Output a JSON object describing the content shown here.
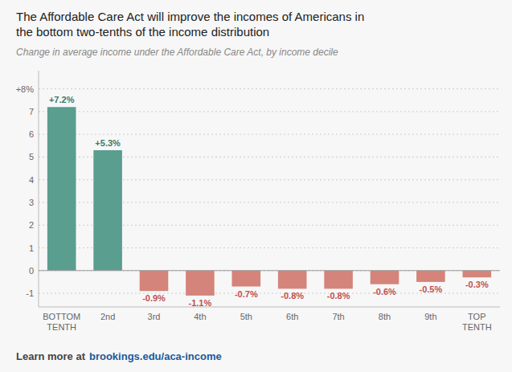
{
  "chart_data": {
    "type": "bar",
    "title": "The Affordable Care Act will improve the incomes of Americans in\nthe bottom two-tenths of the income distribution",
    "subtitle": "Change in average income under the Affordable Care Act, by income decile",
    "categories": [
      "BOTTOM\nTENTH",
      "2nd",
      "3rd",
      "4th",
      "5th",
      "6th",
      "7th",
      "8th",
      "9th",
      "TOP\nTENTH"
    ],
    "values": [
      7.2,
      5.3,
      -0.9,
      -1.1,
      -0.7,
      -0.8,
      -0.8,
      -0.6,
      -0.5,
      -0.3
    ],
    "value_labels": [
      "+7.2%",
      "+5.3%",
      "-0.9%",
      "-1.1%",
      "-0.7%",
      "-0.8%",
      "-0.8%",
      "-0.6%",
      "-0.5%",
      "-0.3%"
    ],
    "colors": [
      "#5a9e8f",
      "#5a9e8f",
      "#d4847a",
      "#d4847a",
      "#d4847a",
      "#d4847a",
      "#d4847a",
      "#d4847a",
      "#d4847a",
      "#d4847a"
    ],
    "data_labels": true,
    "ylim": [
      -1.6,
      8.8
    ],
    "yticks": [
      -1,
      0,
      1,
      2,
      3,
      4,
      5,
      6,
      7,
      {
        "value": 8,
        "label": "+8%"
      }
    ],
    "grid": true,
    "footer": {
      "text": "Learn more at",
      "link": "brookings.edu/aca-income"
    }
  }
}
